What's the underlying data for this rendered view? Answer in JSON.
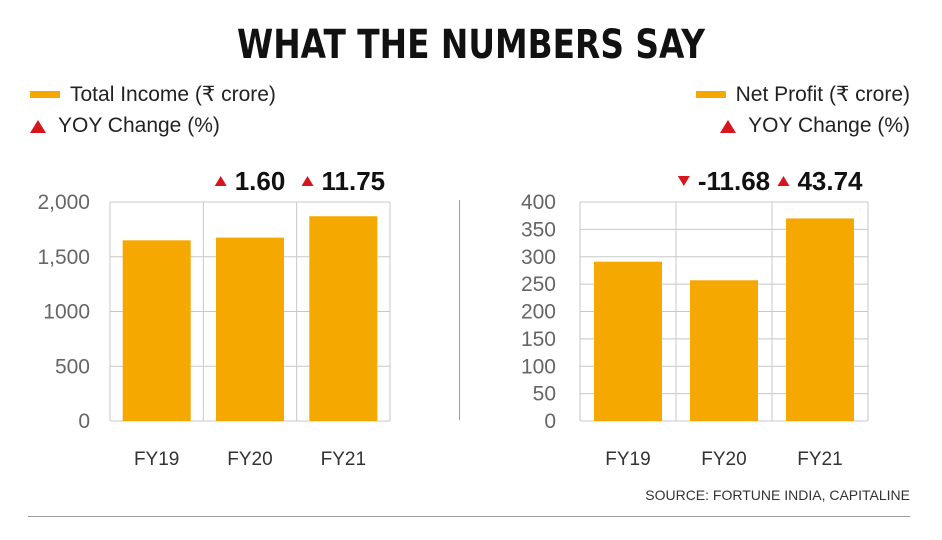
{
  "title": "WHAT THE NUMBERS SAY",
  "source": "SOURCE: FORTUNE INDIA, CAPITALINE",
  "colors": {
    "bar": "#f5a800",
    "up": "#d7161c",
    "down": "#d7161c",
    "grid": "#c8c8c8"
  },
  "legend_left": {
    "series": "Total Income (₹ crore)",
    "change": "YOY  Change (%)"
  },
  "legend_right": {
    "series": "Net Profit (₹ crore)",
    "change": "YOY  Change (%)"
  },
  "chart_data": [
    {
      "type": "bar",
      "categories": [
        "FY19",
        "FY20",
        "FY21"
      ],
      "values": [
        1650,
        1675,
        1870
      ],
      "yoy_change": [
        null,
        "1.60",
        "11.75"
      ],
      "yoy_direction": [
        null,
        "up",
        "up"
      ],
      "series_name": "Total Income (₹ crore)",
      "yticks": [
        "0",
        "500",
        "1000",
        "1,500",
        "2,000"
      ],
      "ytick_values": [
        0,
        500,
        1000,
        1500,
        2000
      ],
      "ylim": [
        0,
        2000
      ],
      "grid": true
    },
    {
      "type": "bar",
      "categories": [
        "FY19",
        "FY20",
        "FY21"
      ],
      "values": [
        291,
        257,
        370
      ],
      "yoy_change": [
        null,
        "-11.68",
        "43.74"
      ],
      "yoy_direction": [
        null,
        "down",
        "up"
      ],
      "series_name": "Net Profit (₹ crore)",
      "yticks": [
        "0",
        "50",
        "100",
        "150",
        "200",
        "250",
        "300",
        "350",
        "400"
      ],
      "ytick_values": [
        0,
        50,
        100,
        150,
        200,
        250,
        300,
        350,
        400
      ],
      "ylim": [
        0,
        400
      ],
      "grid": true
    }
  ]
}
